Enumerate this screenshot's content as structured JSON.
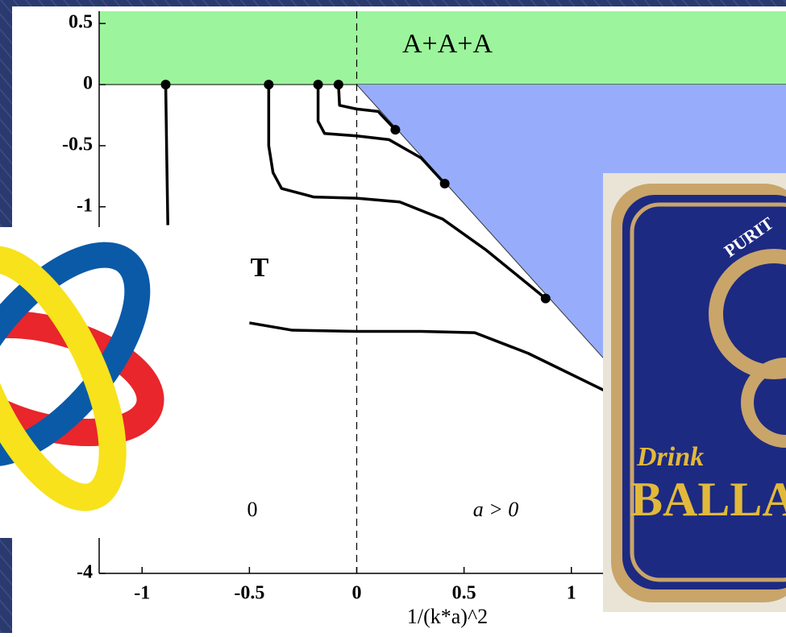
{
  "chart_data": {
    "type": "line",
    "xlabel": "1/(k*a)^2",
    "xlim": [
      -1.2,
      2.0
    ],
    "ylim": [
      -4,
      0.6
    ],
    "xticks": [
      -1,
      -0.5,
      0,
      0.5,
      1
    ],
    "yticks": [
      -4,
      -1,
      -0.5,
      0,
      0.5
    ],
    "vlines": [
      0
    ],
    "annotations": [
      "A+A+A",
      "T",
      "0",
      "a > 0"
    ],
    "boundary": {
      "x": [
        0,
        1.15
      ],
      "values": [
        0,
        -2.24
      ],
      "color": "#97adfc"
    },
    "band_color": "#9cf59c",
    "series": [
      {
        "color": "#000000",
        "x": [
          -0.89,
          -0.885,
          -0.88
        ],
        "values": [
          0,
          -0.6,
          -1.15
        ]
      },
      {
        "color": "#000000",
        "x": [
          -0.41,
          -0.41,
          -0.39,
          -0.35,
          -0.2,
          0,
          0.2,
          0.4,
          0.6,
          0.88
        ],
        "values": [
          0,
          -0.5,
          -0.72,
          -0.85,
          -0.92,
          -0.93,
          -0.96,
          -1.1,
          -1.35,
          -1.75
        ]
      },
      {
        "color": "#000000",
        "x": [
          -0.18,
          -0.18,
          -0.15,
          0,
          0.15,
          0.3,
          0.41
        ],
        "values": [
          0,
          -0.3,
          -0.4,
          -0.42,
          -0.45,
          -0.6,
          -0.81
        ]
      },
      {
        "color": "#000000",
        "x": [
          -0.085,
          -0.08,
          0,
          0.1,
          0.18
        ],
        "values": [
          0,
          -0.17,
          -0.2,
          -0.22,
          -0.37
        ]
      },
      {
        "color": "#000000",
        "x": [
          -0.5,
          -0.3,
          0,
          0.3,
          0.55,
          0.8,
          1.15
        ],
        "values": [
          -1.95,
          -2.01,
          -2.02,
          -2.02,
          -2.03,
          -2.2,
          -2.5
        ]
      }
    ],
    "points": {
      "color": "#000000",
      "x": [
        -0.89,
        -0.41,
        -0.18,
        -0.085,
        0.18,
        0.41,
        0.88
      ],
      "values": [
        0,
        0,
        0,
        0,
        -0.37,
        -0.81,
        -1.75
      ]
    }
  },
  "coaster": {
    "arc_text": "PURIT",
    "script": "Drink",
    "brand": "BALLA"
  }
}
